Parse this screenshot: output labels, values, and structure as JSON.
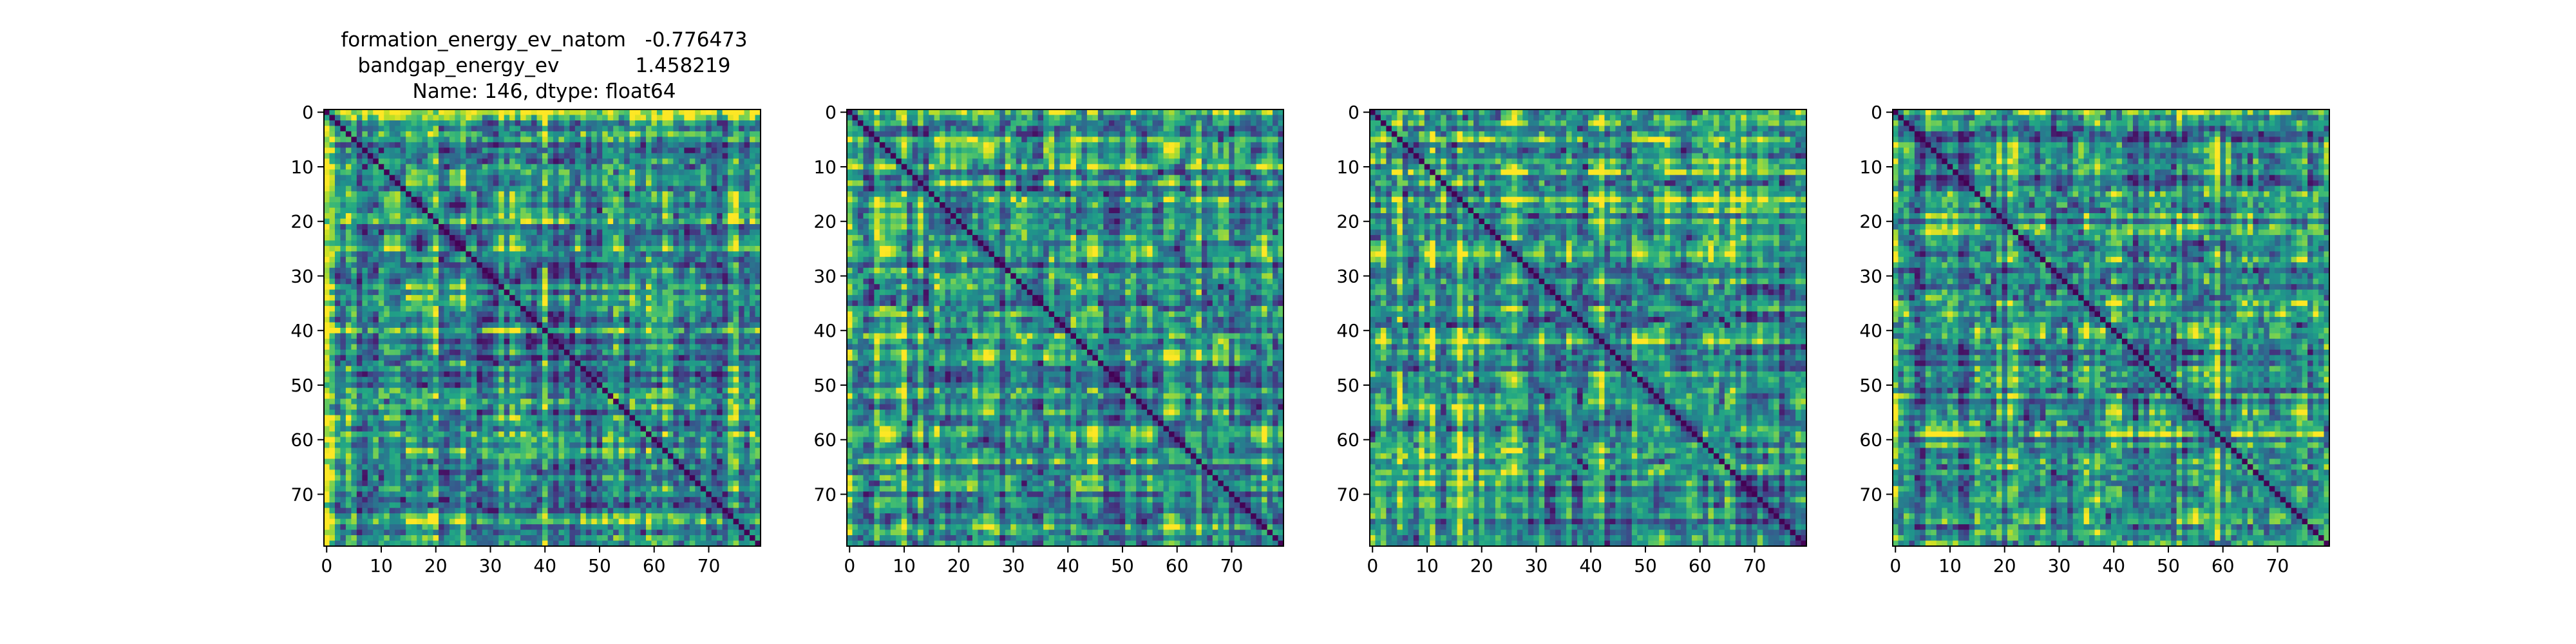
{
  "figure": {
    "title_lines": [
      "formation_energy_ev_natom   -0.776473",
      "bandgap_energy_ev            1.458219",
      "Name: 146, dtype: float64"
    ]
  },
  "chart_data": [
    {
      "type": "heatmap",
      "colormap": "viridis",
      "size": 80,
      "x_ticks": [
        0,
        10,
        20,
        30,
        40,
        50,
        60,
        70
      ],
      "y_ticks": [
        0,
        10,
        20,
        30,
        40,
        50,
        60,
        70
      ],
      "x_tick_labels": [
        "0",
        "10",
        "20",
        "30",
        "40",
        "50",
        "60",
        "70"
      ],
      "y_tick_labels": [
        "0",
        "10",
        "20",
        "30",
        "40",
        "50",
        "60",
        "70"
      ],
      "diagonal_value": 0,
      "value_range": [
        0,
        1
      ],
      "grid": false
    },
    {
      "type": "heatmap",
      "colormap": "viridis",
      "size": 80,
      "x_ticks": [
        0,
        10,
        20,
        30,
        40,
        50,
        60,
        70
      ],
      "y_ticks": [
        0,
        10,
        20,
        30,
        40,
        50,
        60,
        70
      ],
      "x_tick_labels": [
        "0",
        "10",
        "20",
        "30",
        "40",
        "50",
        "60",
        "70"
      ],
      "y_tick_labels": [
        "0",
        "10",
        "20",
        "30",
        "40",
        "50",
        "60",
        "70"
      ],
      "diagonal_value": 0,
      "value_range": [
        0,
        1
      ],
      "grid": false
    },
    {
      "type": "heatmap",
      "colormap": "viridis",
      "size": 80,
      "x_ticks": [
        0,
        10,
        20,
        30,
        40,
        50,
        60,
        70
      ],
      "y_ticks": [
        0,
        10,
        20,
        30,
        40,
        50,
        60,
        70
      ],
      "x_tick_labels": [
        "0",
        "10",
        "20",
        "30",
        "40",
        "50",
        "60",
        "70"
      ],
      "y_tick_labels": [
        "0",
        "10",
        "20",
        "30",
        "40",
        "50",
        "60",
        "70"
      ],
      "diagonal_value": 0,
      "value_range": [
        0,
        1
      ],
      "grid": false
    },
    {
      "type": "heatmap",
      "colormap": "viridis",
      "size": 80,
      "x_ticks": [
        0,
        10,
        20,
        30,
        40,
        50,
        60,
        70
      ],
      "y_ticks": [
        0,
        10,
        20,
        30,
        40,
        50,
        60,
        70
      ],
      "x_tick_labels": [
        "0",
        "10",
        "20",
        "30",
        "40",
        "50",
        "60",
        "70"
      ],
      "y_tick_labels": [
        "0",
        "10",
        "20",
        "30",
        "40",
        "50",
        "60",
        "70"
      ],
      "diagonal_value": 0,
      "value_range": [
        0,
        1
      ],
      "grid": false
    }
  ]
}
